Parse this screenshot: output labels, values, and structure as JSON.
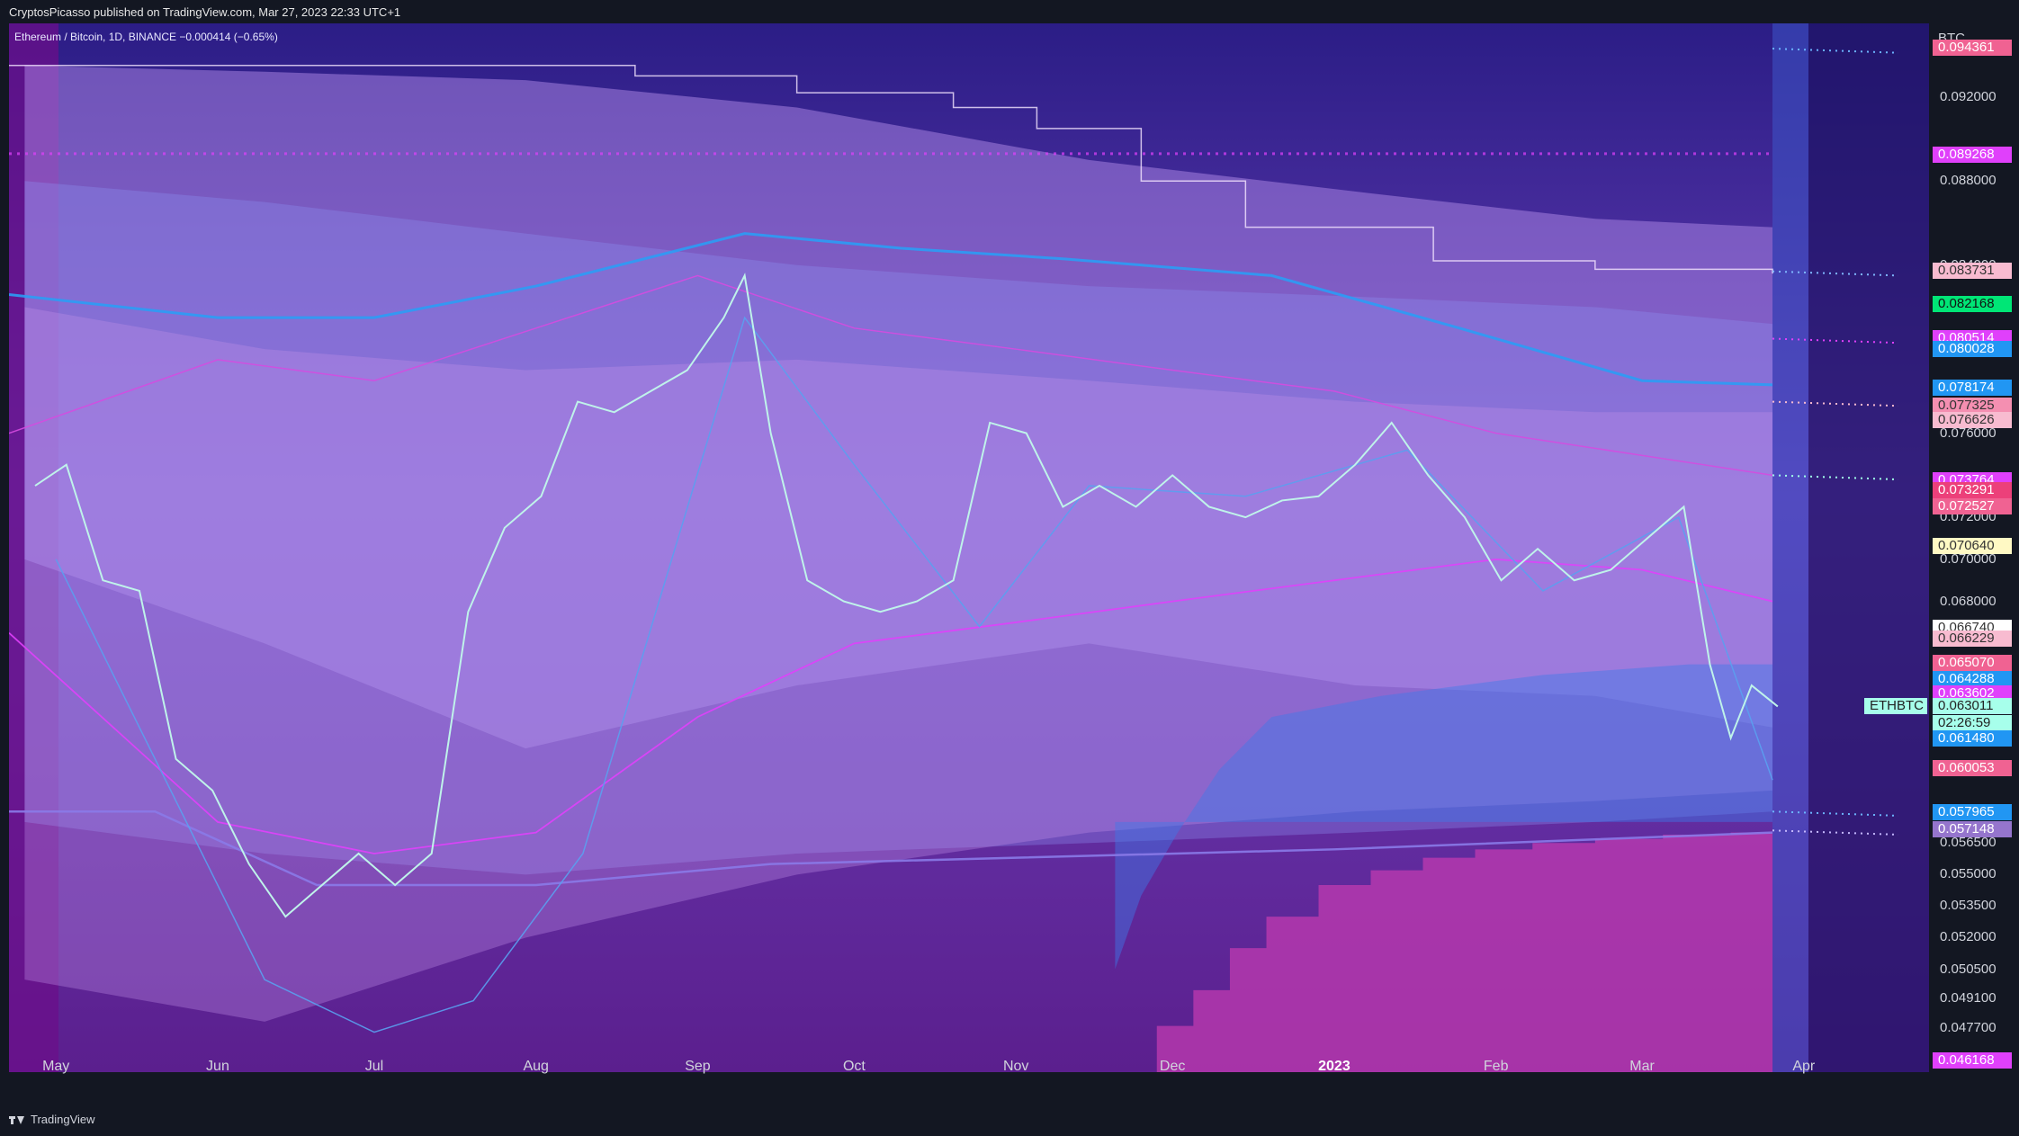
{
  "header": {
    "published": "CryptosPicasso published on TradingView.com, Mar 27, 2023 22:33 UTC+1",
    "symbol_line": "Ethereum / Bitcoin, 1D, BINANCE  −0.000414 (−0.65%)"
  },
  "footer": {
    "brand": "TradingView"
  },
  "colors": {
    "background": "#2a1d7a",
    "price_line": "#bff3ea",
    "accent": "#e040fb",
    "blue": "#2196f3",
    "axis_bg": "#131722"
  },
  "chart_data": {
    "type": "line",
    "symbol": "ETHBTC",
    "currency_label": "BTC",
    "interval": "1D",
    "exchange": "BINANCE",
    "change": "−0.000414 (−0.65%)",
    "ylim": [
      0.0456,
      0.0955
    ],
    "x_ticks": [
      "May",
      "Jun",
      "Jul",
      "Aug",
      "Sep",
      "Oct",
      "Nov",
      "Dec",
      "2023",
      "Feb",
      "Mar",
      "Apr"
    ],
    "y_ticks": [
      "0.092000",
      "0.088000",
      "0.084000",
      "0.080000",
      "0.076000",
      "0.072000",
      "0.070000",
      "0.068000",
      "0.056500",
      "0.055000",
      "0.053500",
      "0.052000",
      "0.050500",
      "0.049100",
      "0.047700"
    ],
    "y_tick_values": [
      0.092,
      0.088,
      0.084,
      0.08,
      0.076,
      0.072,
      0.07,
      0.068,
      0.0565,
      0.055,
      0.0535,
      0.052,
      0.0505,
      0.0491,
      0.0477
    ],
    "grid": false,
    "legend": "none",
    "series": [
      {
        "x": [
          "2022-04-27",
          "2022-05-03",
          "2022-05-10",
          "2022-05-17",
          "2022-05-24",
          "2022-05-31",
          "2022-06-07",
          "2022-06-14",
          "2022-06-21",
          "2022-06-28",
          "2022-07-05",
          "2022-07-12",
          "2022-07-19",
          "2022-07-26",
          "2022-08-02",
          "2022-08-09",
          "2022-08-16",
          "2022-08-23",
          "2022-08-30",
          "2022-09-06",
          "2022-09-10",
          "2022-09-15",
          "2022-09-22",
          "2022-09-29",
          "2022-10-06",
          "2022-10-13",
          "2022-10-20",
          "2022-10-27",
          "2022-11-03",
          "2022-11-10",
          "2022-11-17",
          "2022-11-24",
          "2022-12-01",
          "2022-12-08",
          "2022-12-15",
          "2022-12-22",
          "2022-12-29",
          "2023-01-05",
          "2023-01-12",
          "2023-01-19",
          "2023-01-26",
          "2023-02-02",
          "2023-02-09",
          "2023-02-16",
          "2023-02-23",
          "2023-03-02",
          "2023-03-09",
          "2023-03-14",
          "2023-03-18",
          "2023-03-22",
          "2023-03-27"
        ],
        "y": [
          0.0735,
          0.0745,
          0.069,
          0.0685,
          0.0605,
          0.059,
          0.0555,
          0.053,
          0.0545,
          0.056,
          0.0545,
          0.056,
          0.0675,
          0.0715,
          0.073,
          0.0775,
          0.077,
          0.078,
          0.079,
          0.0815,
          0.0835,
          0.076,
          0.069,
          0.068,
          0.0675,
          0.068,
          0.069,
          0.0765,
          0.076,
          0.0725,
          0.0735,
          0.0725,
          0.074,
          0.0725,
          0.072,
          0.0728,
          0.073,
          0.0745,
          0.0765,
          0.074,
          0.072,
          0.069,
          0.0705,
          0.069,
          0.0695,
          0.071,
          0.0725,
          0.065,
          0.0615,
          0.064,
          0.063
        ]
      }
    ],
    "price_tags": [
      {
        "label": "0.094361",
        "value": 0.094361,
        "bg": "#f06292",
        "fg": "#ffffff"
      },
      {
        "label": "0.089268",
        "value": 0.089268,
        "bg": "#e040fb",
        "fg": "#ffffff"
      },
      {
        "label": "0.083731",
        "value": 0.083731,
        "bg": "#f8bbd0",
        "fg": "#333333"
      },
      {
        "label": "0.082168",
        "value": 0.082168,
        "bg": "#00e676",
        "fg": "#111111"
      },
      {
        "label": "0.080514",
        "value": 0.080514,
        "bg": "#e040fb",
        "fg": "#ffffff"
      },
      {
        "label": "0.080028",
        "value": 0.080028,
        "bg": "#2196f3",
        "fg": "#ffffff"
      },
      {
        "label": "0.078174",
        "value": 0.078174,
        "bg": "#2196f3",
        "fg": "#ffffff"
      },
      {
        "label": "0.077325",
        "value": 0.077325,
        "bg": "#f48fb1",
        "fg": "#333333"
      },
      {
        "label": "0.076626",
        "value": 0.076626,
        "bg": "#f8bbd0",
        "fg": "#333333"
      },
      {
        "label": "0.073764",
        "value": 0.073764,
        "bg": "#e040fb",
        "fg": "#ffffff"
      },
      {
        "label": "0.073291",
        "value": 0.073291,
        "bg": "#ec407a",
        "fg": "#ffffff"
      },
      {
        "label": "0.072527",
        "value": 0.072527,
        "bg": "#f06292",
        "fg": "#ffffff"
      },
      {
        "label": "0.070640",
        "value": 0.07064,
        "bg": "#fff9c4",
        "fg": "#333333"
      },
      {
        "label": "0.066740",
        "value": 0.06674,
        "bg": "#ffffff",
        "fg": "#333333"
      },
      {
        "label": "0.066229",
        "value": 0.066229,
        "bg": "#f8bbd0",
        "fg": "#333333"
      },
      {
        "label": "0.065070",
        "value": 0.06507,
        "bg": "#f06292",
        "fg": "#ffffff"
      },
      {
        "label": "0.064288",
        "value": 0.064288,
        "bg": "#2196f3",
        "fg": "#ffffff"
      },
      {
        "label": "0.063602",
        "value": 0.063602,
        "bg": "#e040fb",
        "fg": "#ffffff"
      },
      {
        "label": "0.063011",
        "value": 0.063011,
        "bg": "#a7ffeb",
        "fg": "#222222"
      },
      {
        "label": "02:26:59",
        "value": 0.0622,
        "bg": "#a7ffeb",
        "fg": "#222222"
      },
      {
        "label": "0.061480",
        "value": 0.06148,
        "bg": "#2196f3",
        "fg": "#ffffff"
      },
      {
        "label": "0.060053",
        "value": 0.060053,
        "bg": "#f06292",
        "fg": "#ffffff"
      },
      {
        "label": "0.057965",
        "value": 0.057965,
        "bg": "#2196f3",
        "fg": "#ffffff"
      },
      {
        "label": "0.057148",
        "value": 0.057148,
        "bg": "#9575cd",
        "fg": "#ffffff"
      },
      {
        "label": "0.046168",
        "value": 0.046168,
        "bg": "#e040fb",
        "fg": "#ffffff"
      }
    ],
    "symbol_tag": "ETHBTC"
  }
}
